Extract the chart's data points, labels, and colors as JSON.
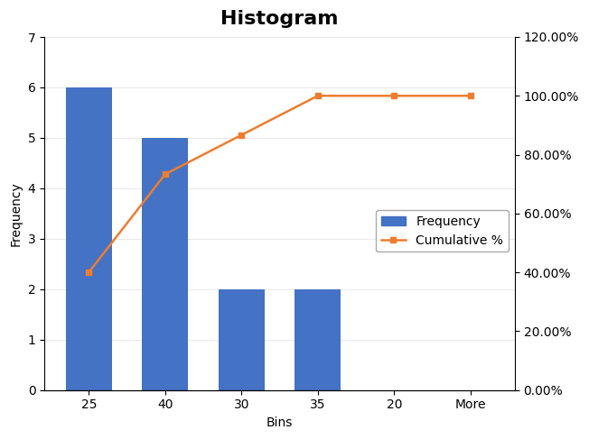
{
  "title": "Histogram",
  "bins": [
    "25",
    "40",
    "30",
    "35",
    "20",
    "More"
  ],
  "frequency": [
    6,
    5,
    2,
    2,
    0,
    0
  ],
  "cumulative_pct": [
    0.4,
    0.7333,
    0.8667,
    1.0,
    1.0,
    1.0
  ],
  "bar_color": "#4472C4",
  "line_color": "#ED7D31",
  "xlabel": "Bins",
  "ylabel_left": "Frequency",
  "ylabel_right": "",
  "ylim_left": [
    0,
    7
  ],
  "ylim_right": [
    0,
    1.2
  ],
  "yticks_left": [
    0,
    1,
    2,
    3,
    4,
    5,
    6,
    7
  ],
  "yticks_right_vals": [
    0.0,
    0.2,
    0.4,
    0.6,
    0.8,
    1.0,
    1.2
  ],
  "yticks_right_labels": [
    "0.00%",
    "20.00%",
    "40.00%",
    "60.00%",
    "80.00%",
    "100.00%",
    "120.00%"
  ],
  "bg_color": "#FFFFFF",
  "legend_freq": "Frequency",
  "legend_cum": "Cumulative %",
  "title_fontsize": 16,
  "axis_fontsize": 10,
  "label_fontsize": 10
}
